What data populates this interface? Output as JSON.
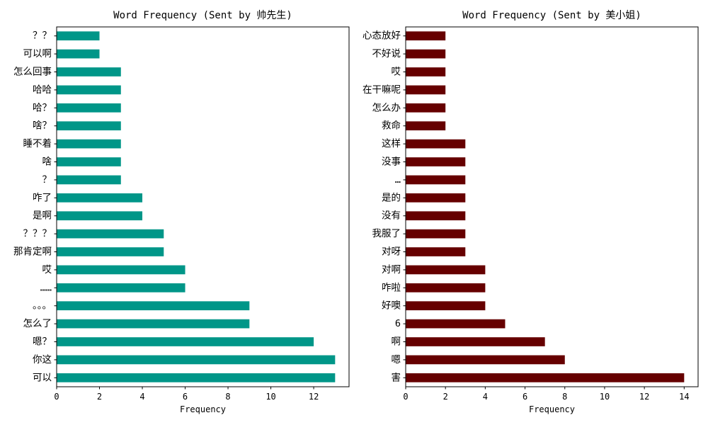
{
  "chart_data": [
    {
      "type": "bar",
      "orientation": "horizontal",
      "title": "Word Frequency (Sent by 帅先生)",
      "xlabel": "Frequency",
      "xlim": [
        0,
        13.65
      ],
      "xticks": [
        0,
        2,
        4,
        6,
        8,
        10,
        12
      ],
      "categories": [
        "可以",
        "你这",
        "嗯？",
        "怎么了",
        "。。。",
        "……",
        "哎",
        "那肯定啊",
        "？？？",
        "是啊",
        "咋了",
        "？",
        "啥",
        "睡不着",
        "啥？",
        "哈？",
        "哈哈",
        "怎么回事",
        "可以啊",
        "？？"
      ],
      "values": [
        13,
        13,
        12,
        9,
        9,
        6,
        6,
        5,
        5,
        4,
        4,
        3,
        3,
        3,
        3,
        3,
        3,
        3,
        2,
        2
      ],
      "color": "#009688",
      "grid": false,
      "legend": false
    },
    {
      "type": "bar",
      "orientation": "horizontal",
      "title": "Word Frequency (Sent by 美小姐)",
      "xlabel": "Frequency",
      "xlim": [
        0,
        14.7
      ],
      "xticks": [
        0,
        2,
        4,
        6,
        8,
        10,
        12,
        14
      ],
      "categories": [
        "害",
        "嗯",
        "啊",
        "6",
        "好噢",
        "咋啦",
        "对啊",
        "对呀",
        "我服了",
        "没有",
        "是的",
        "…",
        "没事",
        "这样",
        "救命",
        "怎么办",
        "在干嘛呢",
        "哎",
        "不好说",
        "心态放好"
      ],
      "values": [
        14,
        8,
        7,
        5,
        4,
        4,
        4,
        3,
        3,
        3,
        3,
        3,
        3,
        3,
        2,
        2,
        2,
        2,
        2,
        2
      ],
      "color": "#660000",
      "grid": false,
      "legend": false
    }
  ]
}
